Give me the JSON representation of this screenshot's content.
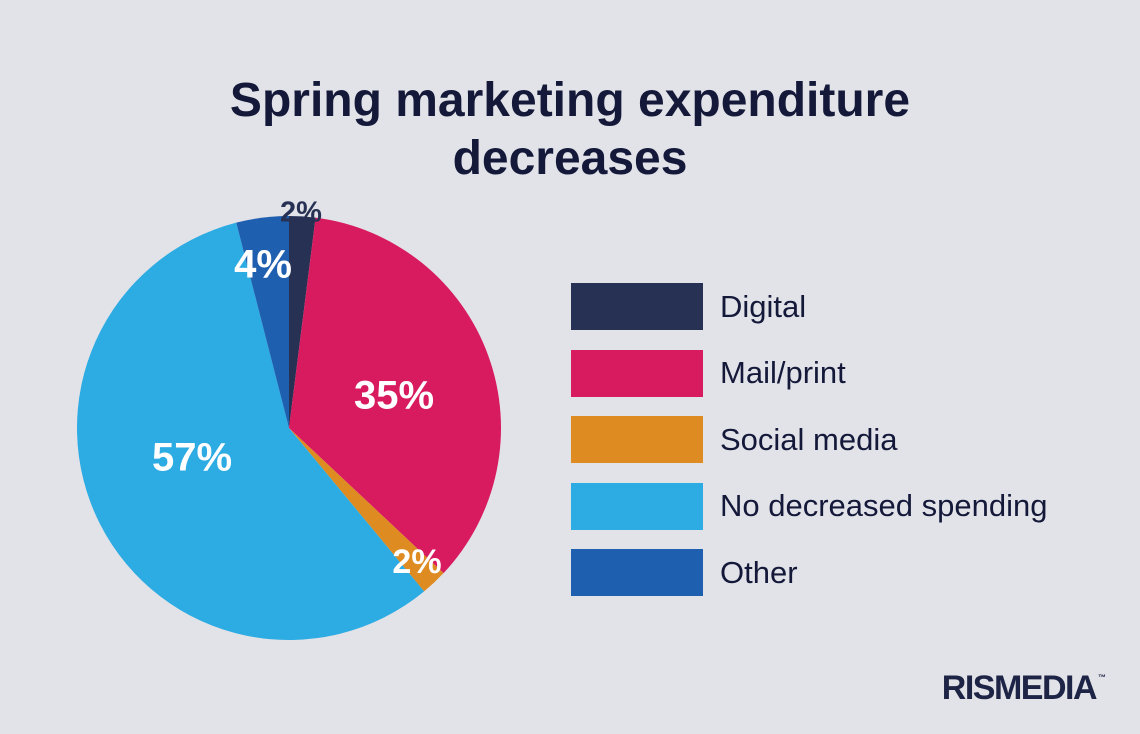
{
  "chart_data": {
    "type": "pie",
    "title": "Spring marketing expenditure decreases",
    "title_lines": [
      "Spring marketing expenditure",
      "decreases"
    ],
    "slices": [
      {
        "label": "Digital",
        "value": 2,
        "display": "2%",
        "color": "#263154",
        "label_color": "#263154"
      },
      {
        "label": "Mail/print",
        "value": 35,
        "display": "35%",
        "color": "#d81b5f",
        "label_color": "#ffffff"
      },
      {
        "label": "Social media",
        "value": 2,
        "display": "2%",
        "color": "#de8b22",
        "label_color": "#ffffff"
      },
      {
        "label": "No decreased spending",
        "value": 57,
        "display": "57%",
        "color": "#2dabe3",
        "label_color": "#ffffff"
      },
      {
        "label": "Other",
        "value": 4,
        "display": "4%",
        "color": "#1f5fb0",
        "label_color": "#ffffff"
      }
    ],
    "start_angle_deg": 0,
    "direction": "clockwise",
    "legend_position": "right"
  },
  "colors": {
    "background": "#e2e3e8",
    "title": "#14193a",
    "legend_text": "#14193a"
  },
  "brand": {
    "logo_text": "RISMEDIA",
    "logo_mark": "™"
  }
}
